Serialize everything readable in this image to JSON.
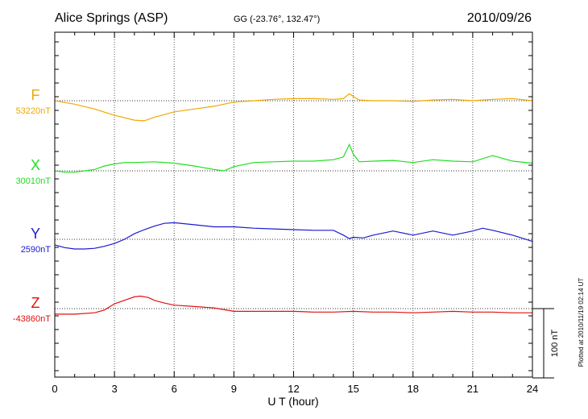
{
  "header": {
    "station": "Alice Springs (ASP)",
    "coords": "GG (-23.76°, 132.47°)",
    "date": "2010/09/26"
  },
  "footer_note": "Plotted at 2010/11/19 02:14 UT",
  "chart_data": {
    "type": "line",
    "xlabel": "U T (hour)",
    "xlim": [
      0,
      24
    ],
    "xticks": [
      0,
      3,
      6,
      9,
      12,
      15,
      18,
      21,
      24
    ],
    "xtick_labels": [
      "0",
      "3",
      "6",
      "9",
      "12",
      "15",
      "18",
      "21",
      "24"
    ],
    "scale_bar": {
      "label": "100 nT",
      "value_nT": 100
    },
    "grid": true,
    "series": [
      {
        "name": "F",
        "baseline_label": "53220nT",
        "baseline_nT": 53220,
        "color": "#f0a800",
        "x": [
          0,
          1,
          2,
          3,
          4,
          4.5,
          5,
          6,
          7,
          8,
          9,
          10,
          11,
          12,
          13,
          14,
          14.5,
          14.8,
          15,
          15.3,
          16,
          17,
          18,
          19,
          20,
          21,
          22,
          23,
          24
        ],
        "y": [
          53220,
          53215,
          53208,
          53199,
          53192,
          53191,
          53196,
          53204,
          53208,
          53212,
          53218,
          53220,
          53222,
          53223,
          53223,
          53222,
          53223,
          53230,
          53226,
          53221,
          53220,
          53220,
          53219,
          53221,
          53222,
          53220,
          53222,
          53223,
          53220
        ]
      },
      {
        "name": "X",
        "baseline_label": "30010nT",
        "baseline_nT": 30010,
        "color": "#22dd22",
        "x": [
          0,
          0.5,
          1,
          1.5,
          2,
          2.5,
          3,
          3.5,
          4,
          5,
          6,
          7,
          8,
          8.5,
          9,
          10,
          11,
          12,
          13,
          14,
          14.5,
          14.8,
          15,
          15.3,
          16,
          17,
          18,
          19,
          20,
          21,
          22,
          23,
          24
        ],
        "y": [
          30010,
          30008,
          30008,
          30010,
          30012,
          30017,
          30020,
          30022,
          30022,
          30023,
          30021,
          30017,
          30012,
          30010,
          30016,
          30022,
          30023,
          30024,
          30024,
          30026,
          30030,
          30048,
          30034,
          30023,
          30024,
          30025,
          30022,
          30026,
          30024,
          30023,
          30032,
          30024,
          30021
        ]
      },
      {
        "name": "Y",
        "baseline_label": "2590nT",
        "baseline_nT": 2590,
        "color": "#1a1ad0",
        "x": [
          0,
          0.5,
          1,
          1.5,
          2,
          2.5,
          3,
          3.5,
          4,
          4.5,
          5,
          5.5,
          6,
          7,
          8,
          9,
          10,
          11,
          12,
          13,
          14,
          14.5,
          14.8,
          15,
          15.5,
          16,
          17,
          18,
          19,
          20,
          21,
          21.5,
          22,
          23,
          24
        ],
        "y": [
          2582,
          2578,
          2576,
          2576,
          2577,
          2580,
          2584,
          2590,
          2598,
          2604,
          2609,
          2613,
          2614,
          2611,
          2608,
          2608,
          2606,
          2605,
          2604,
          2603,
          2603,
          2596,
          2591,
          2593,
          2592,
          2596,
          2602,
          2596,
          2602,
          2596,
          2602,
          2606,
          2603,
          2596,
          2587
        ]
      },
      {
        "name": "Z",
        "baseline_label": "-43860nT",
        "baseline_nT": -43860,
        "color": "#e01010",
        "x": [
          0,
          1,
          2,
          2.5,
          3,
          3.5,
          4,
          4.3,
          4.7,
          5,
          5.5,
          6,
          7,
          8,
          9,
          10,
          11,
          12,
          13,
          14,
          15,
          16,
          17,
          18,
          19,
          20,
          21,
          22,
          23,
          24
        ],
        "y": [
          -43868,
          -43868,
          -43866,
          -43862,
          -43853,
          -43848,
          -43843,
          -43842,
          -43844,
          -43848,
          -43852,
          -43855,
          -43857,
          -43859,
          -43864,
          -43864,
          -43864,
          -43864,
          -43865,
          -43865,
          -43864,
          -43865,
          -43865,
          -43866,
          -43865,
          -43864,
          -43865,
          -43865,
          -43866,
          -43866
        ]
      }
    ]
  }
}
